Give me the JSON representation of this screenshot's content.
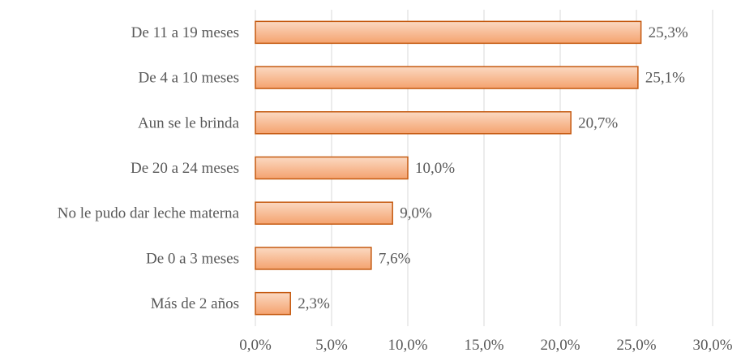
{
  "chart_data": {
    "type": "bar",
    "orientation": "horizontal",
    "categories": [
      "De 11 a 19 meses",
      "De 4 a 10 meses",
      "Aun se le brinda",
      "De 20 a 24 meses",
      "No le pudo dar leche materna",
      "De 0 a 3 meses",
      "Más de 2 años"
    ],
    "values": [
      25.3,
      25.1,
      20.7,
      10.0,
      9.0,
      7.6,
      2.3
    ],
    "data_labels": [
      "25,3%",
      "25,1%",
      "20,7%",
      "10,0%",
      "9,0%",
      "7,6%",
      "2,3%"
    ],
    "x_ticks": [
      "0,0%",
      "5,0%",
      "10,0%",
      "15,0%",
      "20,0%",
      "25,0%",
      "30,0%"
    ],
    "xlim": [
      0,
      30
    ],
    "x_tick_step": 5,
    "title": "",
    "xlabel": "",
    "ylabel": "",
    "grid": true,
    "legend": "none",
    "colors": {
      "bar_fill_top": "#FBD9C2",
      "bar_fill_bottom": "#F4A26E",
      "bar_stroke": "#C55A11",
      "grid": "#D9D9D9",
      "text": "#595959"
    }
  }
}
